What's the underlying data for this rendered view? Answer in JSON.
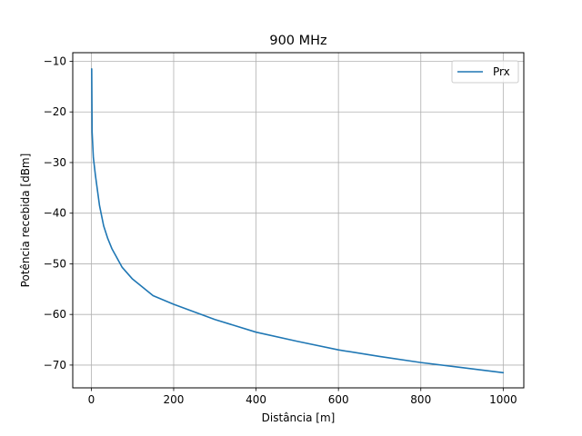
{
  "chart_data": {
    "type": "line",
    "title": "900 MHz",
    "xlabel": "Distância [m]",
    "ylabel": "Potência recebida [dBm]",
    "xlim": [
      -45,
      1050
    ],
    "ylim": [
      -74.5,
      -8.3
    ],
    "xticks": [
      0,
      200,
      400,
      600,
      800,
      1000
    ],
    "yticks": [
      -10,
      -20,
      -30,
      -40,
      -50,
      -60,
      -70
    ],
    "grid": true,
    "legend_position": "upper right",
    "colors": {
      "series": "#1f77b4",
      "grid": "#b0b0b0"
    },
    "series": [
      {
        "name": "Prx",
        "x": [
          1,
          2,
          5,
          10,
          20,
          30,
          40,
          50,
          75,
          100,
          150,
          200,
          250,
          300,
          400,
          500,
          600,
          700,
          800,
          900,
          1000
        ],
        "y": [
          -11.5,
          -24,
          -29,
          -32.5,
          -38.5,
          -42.5,
          -45,
          -47,
          -50.7,
          -53,
          -56.3,
          -58,
          -59.5,
          -61,
          -63.5,
          -65.3,
          -67,
          -68.3,
          -69.5,
          -70.5,
          -71.5
        ]
      }
    ]
  }
}
